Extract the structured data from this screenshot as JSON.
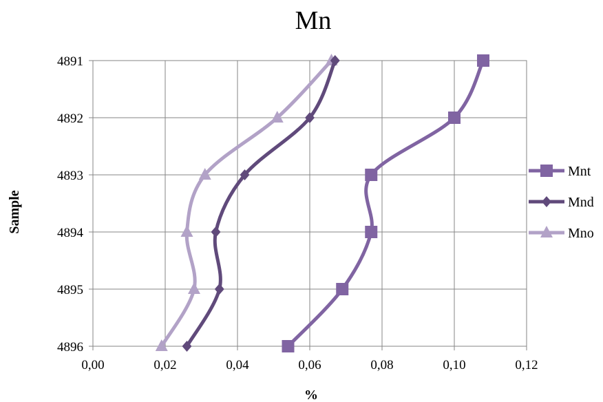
{
  "chart_data": {
    "type": "line",
    "title": "Mn",
    "xlabel": "%",
    "ylabel": "Sample",
    "xlim": [
      0,
      0.12
    ],
    "x_ticks": [
      "0,00",
      "0,02",
      "0,04",
      "0,06",
      "0,08",
      "0,10",
      "0,12"
    ],
    "categories": [
      "4891",
      "4892",
      "4893",
      "4894",
      "4895",
      "4896"
    ],
    "grid": true,
    "legend_position": "right",
    "series": [
      {
        "name": "Mnt",
        "values": [
          0.108,
          0.1,
          0.077,
          0.077,
          0.069,
          0.054
        ],
        "color": "#8064a2",
        "marker": "square"
      },
      {
        "name": "Mnd",
        "values": [
          0.067,
          0.06,
          0.042,
          0.034,
          0.035,
          0.026
        ],
        "color": "#604a7b",
        "marker": "diamond"
      },
      {
        "name": "Mno",
        "values": [
          0.066,
          0.051,
          0.031,
          0.026,
          0.028,
          0.019
        ],
        "color": "#b2a2c7",
        "marker": "triangle"
      }
    ]
  }
}
